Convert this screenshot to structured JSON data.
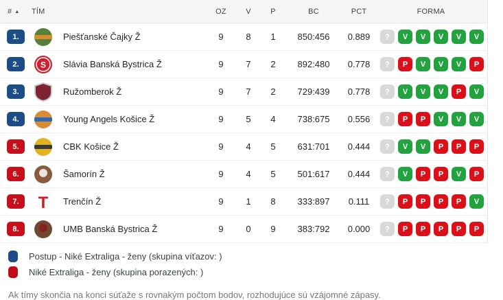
{
  "table": {
    "headers": {
      "rank": "#",
      "team": "TÍM",
      "oz": "OZ",
      "v": "V",
      "p": "P",
      "bc": "BC",
      "pct": "PCT",
      "forma": "FORMA"
    },
    "rows": [
      {
        "rank": "1.",
        "badge": "blue",
        "team": "Piešťanské Čajky Ž",
        "oz": "9",
        "v": "8",
        "p": "1",
        "bc": "850:456",
        "pct": "0.889",
        "forma": [
          "?",
          "V",
          "V",
          "V",
          "V",
          "V"
        ],
        "logo": {
          "type": "circle-band",
          "bg": "#55813a",
          "band": "#e08a2e"
        }
      },
      {
        "rank": "2.",
        "badge": "blue",
        "team": "Slávia Banská Bystrica Ž",
        "oz": "9",
        "v": "7",
        "p": "2",
        "bc": "892:480",
        "pct": "0.778",
        "forma": [
          "?",
          "P",
          "V",
          "V",
          "V",
          "P"
        ],
        "logo": {
          "type": "circle-letter",
          "bg": "#cf2030",
          "letter": "S",
          "fg": "#ffffff"
        }
      },
      {
        "rank": "3.",
        "badge": "blue",
        "team": "Ružomberok Ž",
        "oz": "9",
        "v": "7",
        "p": "2",
        "bc": "729:439",
        "pct": "0.778",
        "forma": [
          "?",
          "V",
          "V",
          "V",
          "P",
          "V"
        ],
        "logo": {
          "type": "shield",
          "bg": "#7d2430",
          "border": "#c9ccd1"
        }
      },
      {
        "rank": "4.",
        "badge": "blue",
        "team": "Young Angels Košice Ž",
        "oz": "9",
        "v": "5",
        "p": "4",
        "bc": "738:675",
        "pct": "0.556",
        "forma": [
          "?",
          "P",
          "P",
          "V",
          "V",
          "V"
        ],
        "logo": {
          "type": "circle-band",
          "bg": "#d98c35",
          "band": "#2a6cb5"
        }
      },
      {
        "rank": "5.",
        "badge": "red",
        "team": "CBK Košice Ž",
        "oz": "9",
        "v": "4",
        "p": "5",
        "bc": "631:701",
        "pct": "0.444",
        "forma": [
          "?",
          "V",
          "V",
          "P",
          "P",
          "P"
        ],
        "logo": {
          "type": "circle-band",
          "bg": "#e3b31f",
          "band": "#3a3a3a"
        }
      },
      {
        "rank": "6.",
        "badge": "red",
        "team": "Šamorín Ž",
        "oz": "9",
        "v": "4",
        "p": "5",
        "bc": "501:617",
        "pct": "0.444",
        "forma": [
          "?",
          "V",
          "P",
          "P",
          "V",
          "P"
        ],
        "logo": {
          "type": "circle-dot",
          "bg": "#8a5a3c",
          "dot": "#e9e5df"
        }
      },
      {
        "rank": "7.",
        "badge": "red",
        "team": "Trenčín Ž",
        "oz": "9",
        "v": "1",
        "p": "8",
        "bc": "333:897",
        "pct": "0.111",
        "forma": [
          "?",
          "P",
          "P",
          "P",
          "P",
          "V"
        ],
        "logo": {
          "type": "letter",
          "letter": "T",
          "fg": "#d11a24"
        }
      },
      {
        "rank": "8.",
        "badge": "red",
        "team": "UMB Banská Bystrica Ž",
        "oz": "9",
        "v": "0",
        "p": "9",
        "bc": "383:792",
        "pct": "0.000",
        "forma": [
          "?",
          "P",
          "P",
          "P",
          "P",
          "P"
        ],
        "logo": {
          "type": "circle-dot",
          "bg": "#6e4a32",
          "dot": "#8c1f1f"
        }
      }
    ]
  },
  "forma_colors": {
    "?": "#d7d9da",
    "V": "#23a33f",
    "P": "#dc1019"
  },
  "badge_colors": {
    "blue": "#1c4d87",
    "red": "#c8101c"
  },
  "legend": {
    "items": [
      {
        "label": "Postup - Niké Extraliga - ženy (skupina víťazov: )",
        "color": "#1c4d87"
      },
      {
        "label": "Niké Extraliga - ženy (skupina porazených: )",
        "color": "#c00d15"
      }
    ]
  },
  "note": "Ak tímy skončia na konci súťaže s rovnakým počtom bodov, rozhodujúce sú vzájomné zápasy."
}
